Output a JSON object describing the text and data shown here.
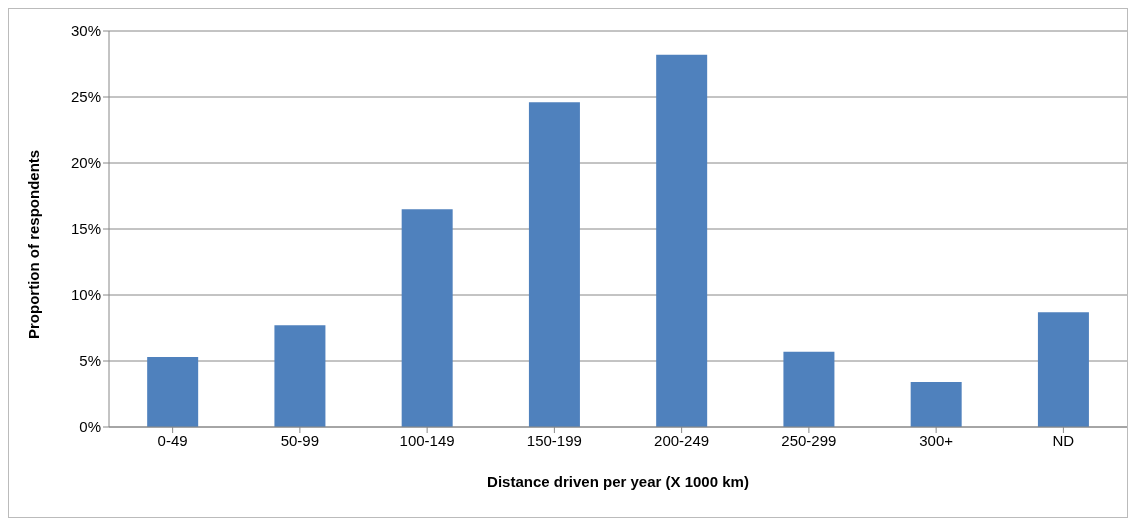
{
  "chart_data": {
    "type": "bar",
    "xlabel": "Distance  driven per year (X 1000 km)",
    "ylabel": "Proportion of respondents",
    "categories": [
      "0-49",
      "50-99",
      "100-149",
      "150-199",
      "200-249",
      "250-299",
      "300+",
      "ND"
    ],
    "values": [
      5.3,
      7.7,
      16.5,
      24.6,
      28.2,
      5.7,
      3.4,
      8.7
    ],
    "color": "#4f81bd",
    "ylim": [
      0,
      30
    ],
    "yticks": [
      {
        "value": 0,
        "label": "0%"
      },
      {
        "value": 5,
        "label": "5%"
      },
      {
        "value": 10,
        "label": "10%"
      },
      {
        "value": 15,
        "label": "15%"
      },
      {
        "value": 20,
        "label": "20%"
      },
      {
        "value": 25,
        "label": "25%"
      },
      {
        "value": 30,
        "label": "30%"
      }
    ],
    "grid": "y"
  }
}
